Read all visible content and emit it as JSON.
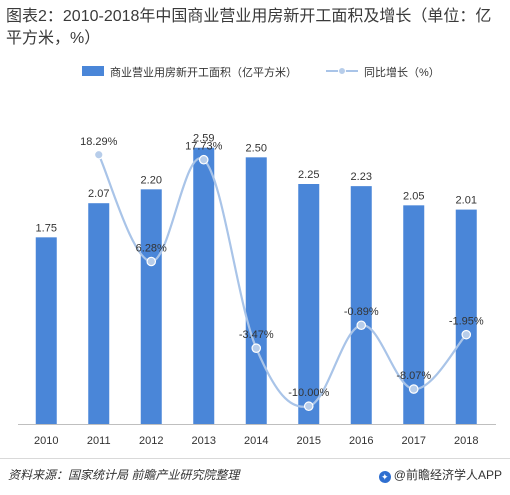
{
  "title": "图表2：2010-2018年中国商业营业用房新开工面积及增长（单位：亿平方米，%）",
  "legend": {
    "bar_label": "商业营业用房新开工面积（亿平方米）",
    "line_label": "同比增长（%）"
  },
  "colors": {
    "bar": "#4a86d8",
    "line": "#a9c4e8",
    "marker": "#b7cdea"
  },
  "chart_data": {
    "type": "bar",
    "categories": [
      "2010",
      "2011",
      "2012",
      "2013",
      "2014",
      "2015",
      "2016",
      "2017",
      "2018"
    ],
    "series": [
      {
        "name": "商业营业用房新开工面积（亿平方米）",
        "type": "bar",
        "values": [
          1.75,
          2.07,
          2.2,
          2.59,
          2.5,
          2.25,
          2.23,
          2.05,
          2.01
        ],
        "labels": [
          "1.75",
          "2.07",
          "2.20",
          "2.59",
          "2.50",
          "2.25",
          "2.23",
          "2.05",
          "2.01"
        ]
      },
      {
        "name": "同比增长（%）",
        "type": "line",
        "smooth": true,
        "values": [
          null,
          18.29,
          6.28,
          17.73,
          -3.47,
          -10.0,
          -0.89,
          -8.07,
          -1.95
        ],
        "labels": [
          "",
          "18.29%",
          "6.28%",
          "17.73%",
          "-3.47%",
          "-10.00%",
          "-0.89%",
          "-8.07%",
          "-1.95%"
        ]
      }
    ],
    "bar_axis_range": [
      0,
      3.0
    ],
    "line_axis_range": [
      -12,
      24
    ],
    "grid": false,
    "legend_position": "top"
  },
  "footer": {
    "source": "资料来源：国家统计局 前瞻产业研究院整理",
    "brand": "@前瞻经济学人APP"
  }
}
